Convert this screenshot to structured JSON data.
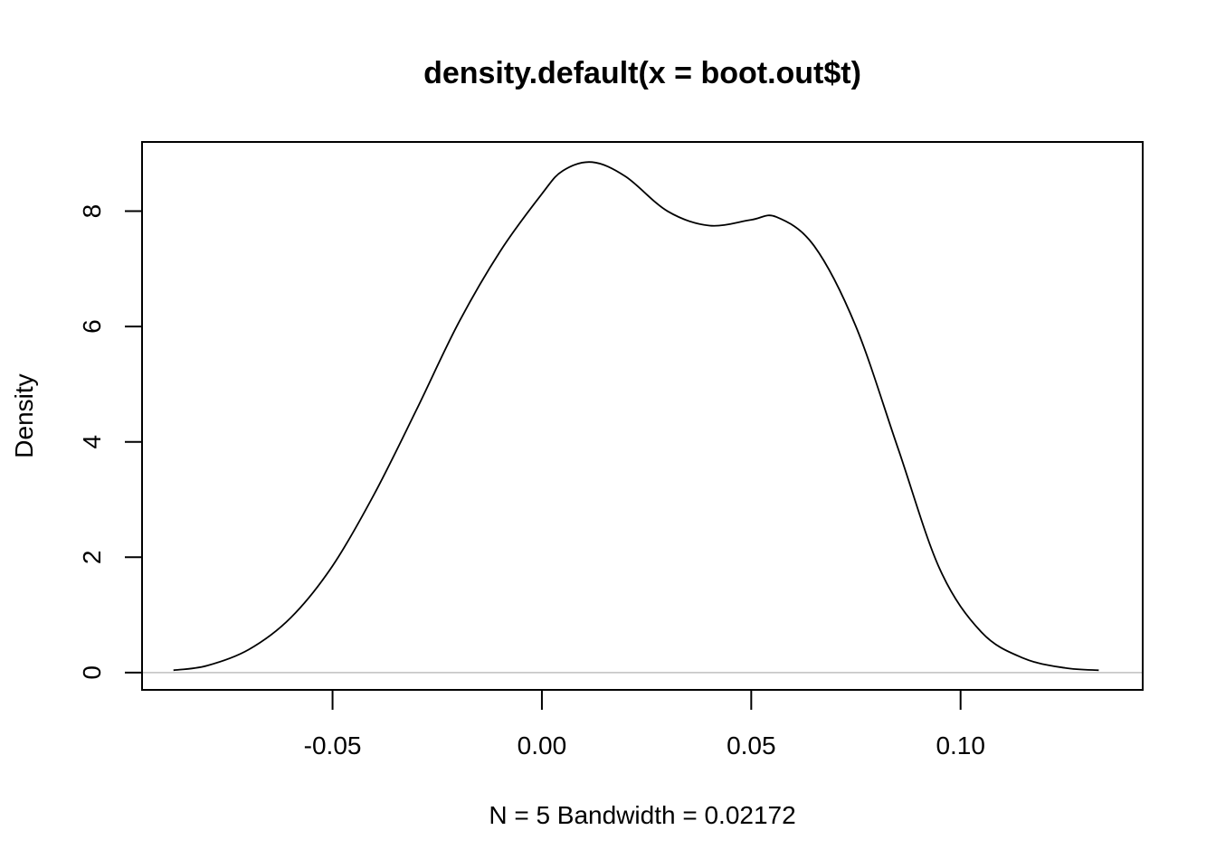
{
  "chart_data": {
    "type": "line",
    "title": "density.default(x = boot.out$t)",
    "xlabel": "N = 5   Bandwidth = 0.02172",
    "ylabel": "Density",
    "xlim": [
      -0.0955,
      0.1435
    ],
    "ylim": [
      -0.3,
      9.2
    ],
    "x_ticks": [
      -0.05,
      0.0,
      0.05,
      0.1
    ],
    "x_tick_labels": [
      "-0.05",
      "0.00",
      "0.05",
      "0.10"
    ],
    "y_ticks": [
      0,
      2,
      4,
      6,
      8
    ],
    "y_tick_labels": [
      "0",
      "2",
      "4",
      "6",
      "8"
    ],
    "grid": false,
    "zero_line": true,
    "series": [
      {
        "x": [
          -0.088,
          -0.08,
          -0.07,
          -0.06,
          -0.05,
          -0.04,
          -0.03,
          -0.02,
          -0.01,
          0.0,
          0.005,
          0.012,
          0.02,
          0.03,
          0.04,
          0.05,
          0.056,
          0.065,
          0.075,
          0.085,
          0.095,
          0.105,
          0.115,
          0.125,
          0.133
        ],
        "y": [
          0.04,
          0.12,
          0.4,
          0.95,
          1.85,
          3.1,
          4.55,
          6.05,
          7.3,
          8.3,
          8.7,
          8.85,
          8.6,
          8.0,
          7.75,
          7.85,
          7.9,
          7.4,
          6.0,
          3.9,
          1.8,
          0.7,
          0.25,
          0.08,
          0.04
        ]
      }
    ]
  }
}
